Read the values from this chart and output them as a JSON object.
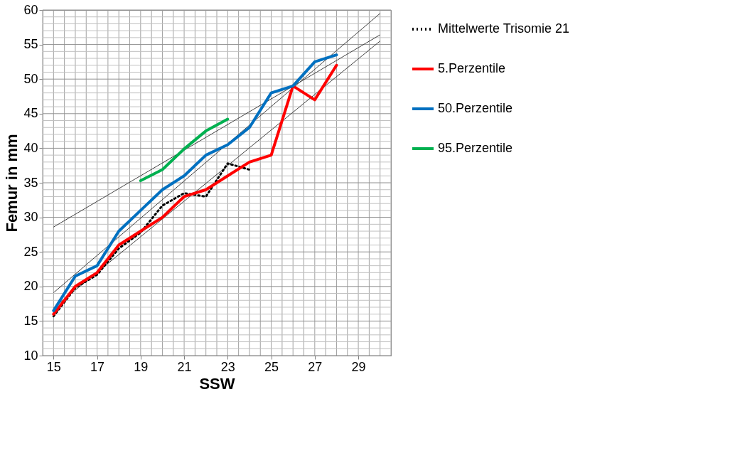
{
  "chart_data": {
    "type": "line",
    "xlabel": "SSW",
    "ylabel": "Femur in mm",
    "xlim": [
      14.5,
      30.5
    ],
    "xticks": [
      15,
      17,
      19,
      21,
      23,
      25,
      27,
      29
    ],
    "ylim": [
      10,
      60
    ],
    "yticks": [
      10,
      15,
      20,
      25,
      30,
      35,
      40,
      45,
      50,
      55,
      60
    ],
    "grid": true,
    "legend": "right",
    "series": [
      {
        "name": "Mittelwerte Trisomie 21",
        "color": "#000000",
        "line_style": "dotted",
        "x": [
          15,
          16,
          17,
          18,
          19,
          20,
          21,
          22,
          23,
          24
        ],
        "values": [
          15.7,
          19.8,
          21.7,
          25.5,
          27.8,
          31.7,
          33.5,
          33.0,
          37.8,
          36.9
        ]
      },
      {
        "name": "5.Perzentile",
        "color": "#ff0000",
        "line_style": "solid",
        "x": [
          15,
          16,
          17,
          18,
          19,
          20,
          21,
          22,
          23,
          24,
          25,
          26,
          27,
          28
        ],
        "values": [
          16,
          20,
          22,
          26,
          28,
          30,
          33,
          34,
          36,
          38,
          39,
          49,
          47,
          52
        ]
      },
      {
        "name": "50.Perzentile",
        "color": "#0070c0",
        "line_style": "solid",
        "x": [
          15,
          16,
          17,
          18,
          19,
          20,
          21,
          22,
          23,
          24,
          25,
          26,
          27,
          28
        ],
        "values": [
          16.5,
          21.5,
          23,
          28,
          31,
          34,
          36,
          39,
          40.5,
          43,
          48,
          49,
          52.5,
          53.5
        ]
      },
      {
        "name": "95.Perzentile",
        "color": "#00b050",
        "line_style": "solid",
        "x": [
          19,
          20,
          21,
          22,
          23
        ],
        "values": [
          35.3,
          36.9,
          39.9,
          42.5,
          44.2
        ]
      },
      {
        "color": "#404040",
        "line_style": "solid",
        "x": [
          15,
          30
        ],
        "values": [
          28.6,
          56.4
        ]
      },
      {
        "color": "#404040",
        "line_style": "solid",
        "x": [
          15,
          30
        ],
        "values": [
          19.1,
          59.5
        ]
      },
      {
        "color": "#404040",
        "line_style": "solid",
        "x": [
          15,
          30
        ],
        "values": [
          16.9,
          55.5
        ]
      }
    ]
  }
}
